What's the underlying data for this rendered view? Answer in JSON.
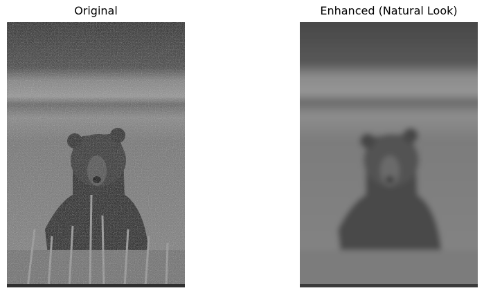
{
  "panels": [
    {
      "title": "Original",
      "image": "grayscale noisy photo of a bear sitting in tall grass"
    },
    {
      "title": "Enhanced (Natural Look)",
      "image": "grayscale denoised smoothed photo of a bear sitting in tall grass"
    }
  ]
}
